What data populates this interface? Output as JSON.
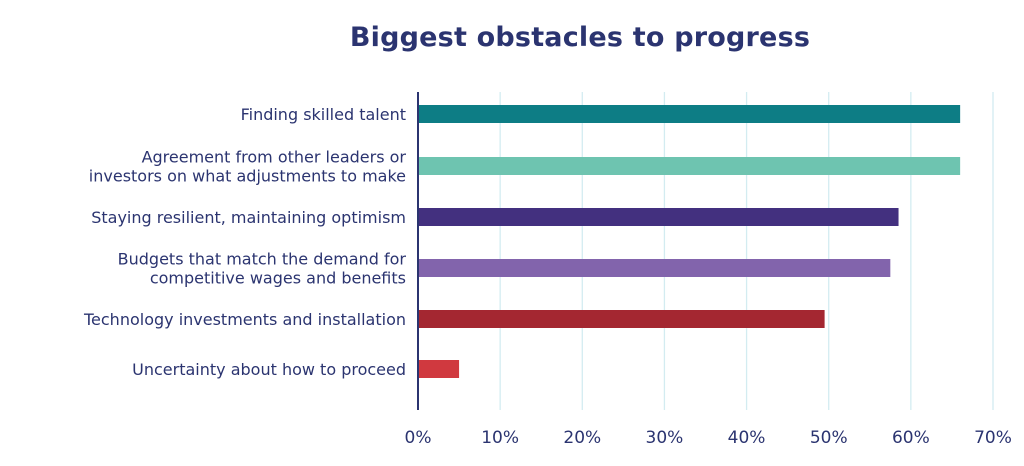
{
  "chart_data": {
    "type": "bar",
    "orientation": "horizontal",
    "title": "Biggest obstacles to progress",
    "xlabel": "",
    "ylabel": "",
    "categories": [
      [
        "Finding skilled talent"
      ],
      [
        "Agreement from other leaders or",
        "investors on what adjustments to make"
      ],
      [
        "Staying resilient, maintaining optimism"
      ],
      [
        "Budgets that match the demand for",
        "competitive wages and benefits"
      ],
      [
        "Technology investments and installation"
      ],
      [
        "Uncertainty about how to proceed"
      ]
    ],
    "values": [
      66,
      66,
      58.5,
      57.5,
      49.5,
      5
    ],
    "colors": [
      "#0d7d85",
      "#6ec4b0",
      "#43307f",
      "#8264ac",
      "#a42731",
      "#d0393f"
    ],
    "xlim": [
      0,
      70
    ],
    "xticks": [
      "0%",
      "10%",
      "20%",
      "30%",
      "40%",
      "50%",
      "60%",
      "70%"
    ],
    "grid": "vertical",
    "legend": "none"
  }
}
